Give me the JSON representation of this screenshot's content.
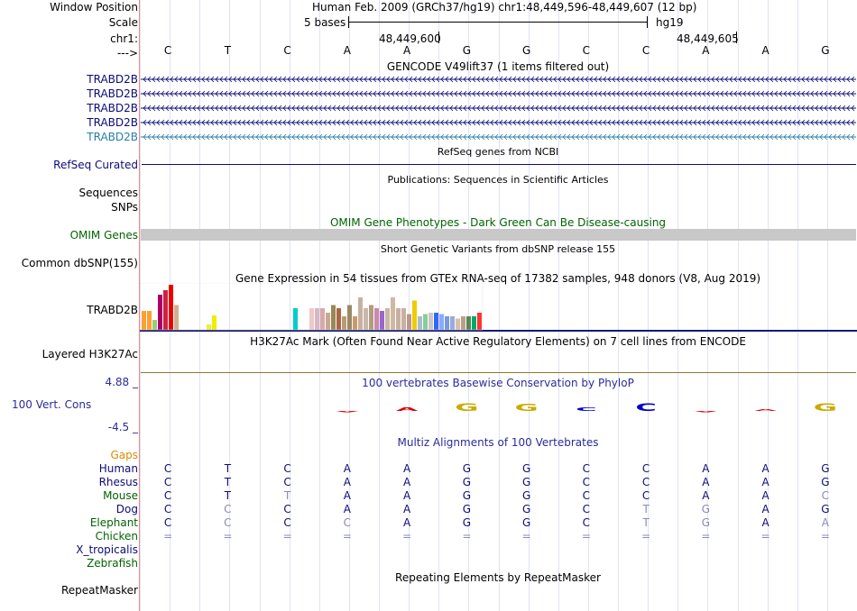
{
  "header": {
    "window_position_label": "Window Position",
    "window_position_value": "Human Feb. 2009 (GRCh37/hg19)   chr1:48,449,596-48,449,607 (12 bp)",
    "scale_label": "Scale",
    "scale_text": "5 bases",
    "assembly": "hg19",
    "chrom_label": "chr1:",
    "coord_left": "48,449,600",
    "coord_right": "48,449,605",
    "strand_label": "--->",
    "bases": [
      "C",
      "T",
      "C",
      "A",
      "A",
      "G",
      "G",
      "C",
      "C",
      "A",
      "A",
      "G"
    ]
  },
  "gencode": {
    "title": "GENCODE V49lift37 (1 items filtered out)",
    "rows": [
      {
        "label": "TRABD2B",
        "color": "#0c0c78"
      },
      {
        "label": "TRABD2B",
        "color": "#0c0c78"
      },
      {
        "label": "TRABD2B",
        "color": "#0c0c78"
      },
      {
        "label": "TRABD2B",
        "color": "#0c0c78"
      },
      {
        "label": "TRABD2B",
        "color": "#2a7fa8"
      }
    ]
  },
  "refseq": {
    "title": "RefSeq genes from NCBI",
    "label": "RefSeq Curated",
    "color": "#0c0c78"
  },
  "publications": {
    "title": "Publications: Sequences in Scientific Articles",
    "label_sequences": "Sequences",
    "label_snps": "SNPs"
  },
  "omim": {
    "title": "OMIM Gene Phenotypes - Dark Green Can Be Disease-causing",
    "label": "OMIM Genes",
    "color": "#006400",
    "bar_color": "#c8c8c8"
  },
  "dbsnp": {
    "title": "Short Genetic Variants from dbSNP release 155",
    "label": "Common dbSNP(155)"
  },
  "gtex": {
    "title": "Gene Expression in 54 tissues from GTEx RNA-seq of 17382 samples, 948 donors (V8, Aug 2019)",
    "label": "TRABD2B",
    "bars": [
      {
        "v": 0.42,
        "c": "#ff9f33"
      },
      {
        "v": 0.42,
        "c": "#ff9f33"
      },
      {
        "v": 0.22,
        "c": "#99cc77"
      },
      {
        "v": 0.78,
        "c": "#aa0066"
      },
      {
        "v": 0.88,
        "c": "#cc2244"
      },
      {
        "v": 1.0,
        "c": "#ee0000"
      },
      {
        "v": 0.55,
        "c": "#cfb090"
      },
      {
        "v": 0.0,
        "c": "#fff"
      },
      {
        "v": 0.0,
        "c": "#fff"
      },
      {
        "v": 0.0,
        "c": "#fff"
      },
      {
        "v": 0.0,
        "c": "#fff"
      },
      {
        "v": 0.0,
        "c": "#fff"
      },
      {
        "v": 0.12,
        "c": "#eeee33"
      },
      {
        "v": 0.32,
        "c": "#eeee00"
      },
      {
        "v": 0.0,
        "c": "#fff"
      },
      {
        "v": 0.0,
        "c": "#fff"
      },
      {
        "v": 0.0,
        "c": "#fff"
      },
      {
        "v": 0.0,
        "c": "#fff"
      },
      {
        "v": 0.0,
        "c": "#fff"
      },
      {
        "v": 0.0,
        "c": "#fff"
      },
      {
        "v": 0.0,
        "c": "#fff"
      },
      {
        "v": 0.0,
        "c": "#fff"
      },
      {
        "v": 0.0,
        "c": "#fff"
      },
      {
        "v": 0.0,
        "c": "#fff"
      },
      {
        "v": 0.0,
        "c": "#fff"
      },
      {
        "v": 0.0,
        "c": "#fff"
      },
      {
        "v": 0.0,
        "c": "#fff"
      },
      {
        "v": 0.0,
        "c": "#fff"
      },
      {
        "v": 0.48,
        "c": "#00cccc"
      },
      {
        "v": 0.0,
        "c": "#fff"
      },
      {
        "v": 0.0,
        "c": "#fff"
      },
      {
        "v": 0.48,
        "c": "#f0c8c8"
      },
      {
        "v": 0.48,
        "c": "#d8b8c0"
      },
      {
        "v": 0.48,
        "c": "#d8a8a8"
      },
      {
        "v": 0.38,
        "c": "#c8a890"
      },
      {
        "v": 0.55,
        "c": "#998855"
      },
      {
        "v": 0.48,
        "c": "#aa6644"
      },
      {
        "v": 0.3,
        "c": "#bb9977"
      },
      {
        "v": 0.55,
        "c": "#998866"
      },
      {
        "v": 0.3,
        "c": "#cc9966"
      },
      {
        "v": 0.72,
        "c": "#c8b0a0"
      },
      {
        "v": 0.48,
        "c": "#c8b8a8"
      },
      {
        "v": 0.55,
        "c": "#b49a80"
      },
      {
        "v": 0.48,
        "c": "#cc88aa"
      },
      {
        "v": 0.42,
        "c": "#9966cc"
      },
      {
        "v": 0.48,
        "c": "#c8b8a0"
      },
      {
        "v": 0.72,
        "c": "#d0b8a0"
      },
      {
        "v": 0.48,
        "c": "#c8b0a0"
      },
      {
        "v": 0.48,
        "c": "#c8b0a0"
      },
      {
        "v": 0.35,
        "c": "#bb9988"
      },
      {
        "v": 0.65,
        "c": "#eecc00"
      },
      {
        "v": 0.3,
        "c": "#aabbcc"
      },
      {
        "v": 0.35,
        "c": "#88cc99"
      },
      {
        "v": 0.38,
        "c": "#c8c8c8"
      },
      {
        "v": 0.38,
        "c": "#3366ff"
      },
      {
        "v": 0.35,
        "c": "#88aaff"
      },
      {
        "v": 0.3,
        "c": "#7799dd"
      },
      {
        "v": 0.3,
        "c": "#99aadd"
      },
      {
        "v": 0.25,
        "c": "#d8c0a8"
      },
      {
        "v": 0.3,
        "c": "#bba088"
      },
      {
        "v": 0.3,
        "c": "#558855"
      },
      {
        "v": 0.3,
        "c": "#00aa66"
      },
      {
        "v": 0.38,
        "c": "#ff3333"
      }
    ]
  },
  "h3k27ac": {
    "title": "H3K27Ac Mark (Often Found Near Active Regulatory Elements) on 7 cell lines from ENCODE",
    "label": "Layered H3K27Ac"
  },
  "phylop": {
    "title": "100 vertebrates Basewise Conservation by PhyloP",
    "label": "100 Vert. Cons",
    "max_label": "4.88 _",
    "min_label": "-4.5 _",
    "color": "#2b2b9b",
    "scores": [
      0,
      0,
      0,
      -0.15,
      0.35,
      0.8,
      0.75,
      0.4,
      0.85,
      -0.15,
      0.2,
      0.8
    ],
    "logo_colors": {
      "A": "#dd0000",
      "C": "#0000cc",
      "G": "#ccaa00",
      "T": "#00aa00"
    }
  },
  "multiz": {
    "title": "Multiz Alignments of 100 Vertebrates",
    "gaps_label": "Gaps",
    "gaps_color": "#d98c00",
    "species": [
      {
        "name": "Human",
        "color": "#0c0c78",
        "bases": [
          "C",
          "T",
          "C",
          "A",
          "A",
          "G",
          "G",
          "C",
          "C",
          "A",
          "A",
          "G"
        ]
      },
      {
        "name": "Rhesus",
        "color": "#0c0c78",
        "bases": [
          "C",
          "T",
          "C",
          "A",
          "A",
          "G",
          "G",
          "C",
          "C",
          "A",
          "A",
          "G"
        ]
      },
      {
        "name": "Mouse",
        "color": "#006400",
        "bases": [
          "C",
          "T",
          "T",
          "A",
          "A",
          "G",
          "G",
          "C",
          "C",
          "A",
          "A",
          "C"
        ]
      },
      {
        "name": "Dog",
        "color": "#0c0c78",
        "bases": [
          "C",
          "C",
          "C",
          "A",
          "A",
          "G",
          "G",
          "C",
          "T",
          "G",
          "A",
          "G"
        ]
      },
      {
        "name": "Elephant",
        "color": "#006400",
        "bases": [
          "C",
          "C",
          "C",
          "C",
          "A",
          "G",
          "G",
          "C",
          "T",
          "G",
          "A",
          "A"
        ]
      },
      {
        "name": "Chicken",
        "color": "#006400",
        "bases": [
          "=",
          "=",
          "=",
          "=",
          "=",
          "=",
          "=",
          "=",
          "=",
          "=",
          "=",
          "="
        ]
      },
      {
        "name": "X_tropicalis",
        "color": "#0c0c78",
        "bases": [
          "",
          "",
          "",
          "",
          "",
          "",
          "",
          "",
          "",
          "",
          "",
          ""
        ]
      },
      {
        "name": "Zebrafish",
        "color": "#006400",
        "bases": [
          "",
          "",
          "",
          "",
          "",
          "",
          "",
          "",
          "",
          "",
          "",
          ""
        ]
      }
    ]
  },
  "repeatmasker": {
    "title": "Repeating Elements by RepeatMasker",
    "label": "RepeatMasker"
  }
}
